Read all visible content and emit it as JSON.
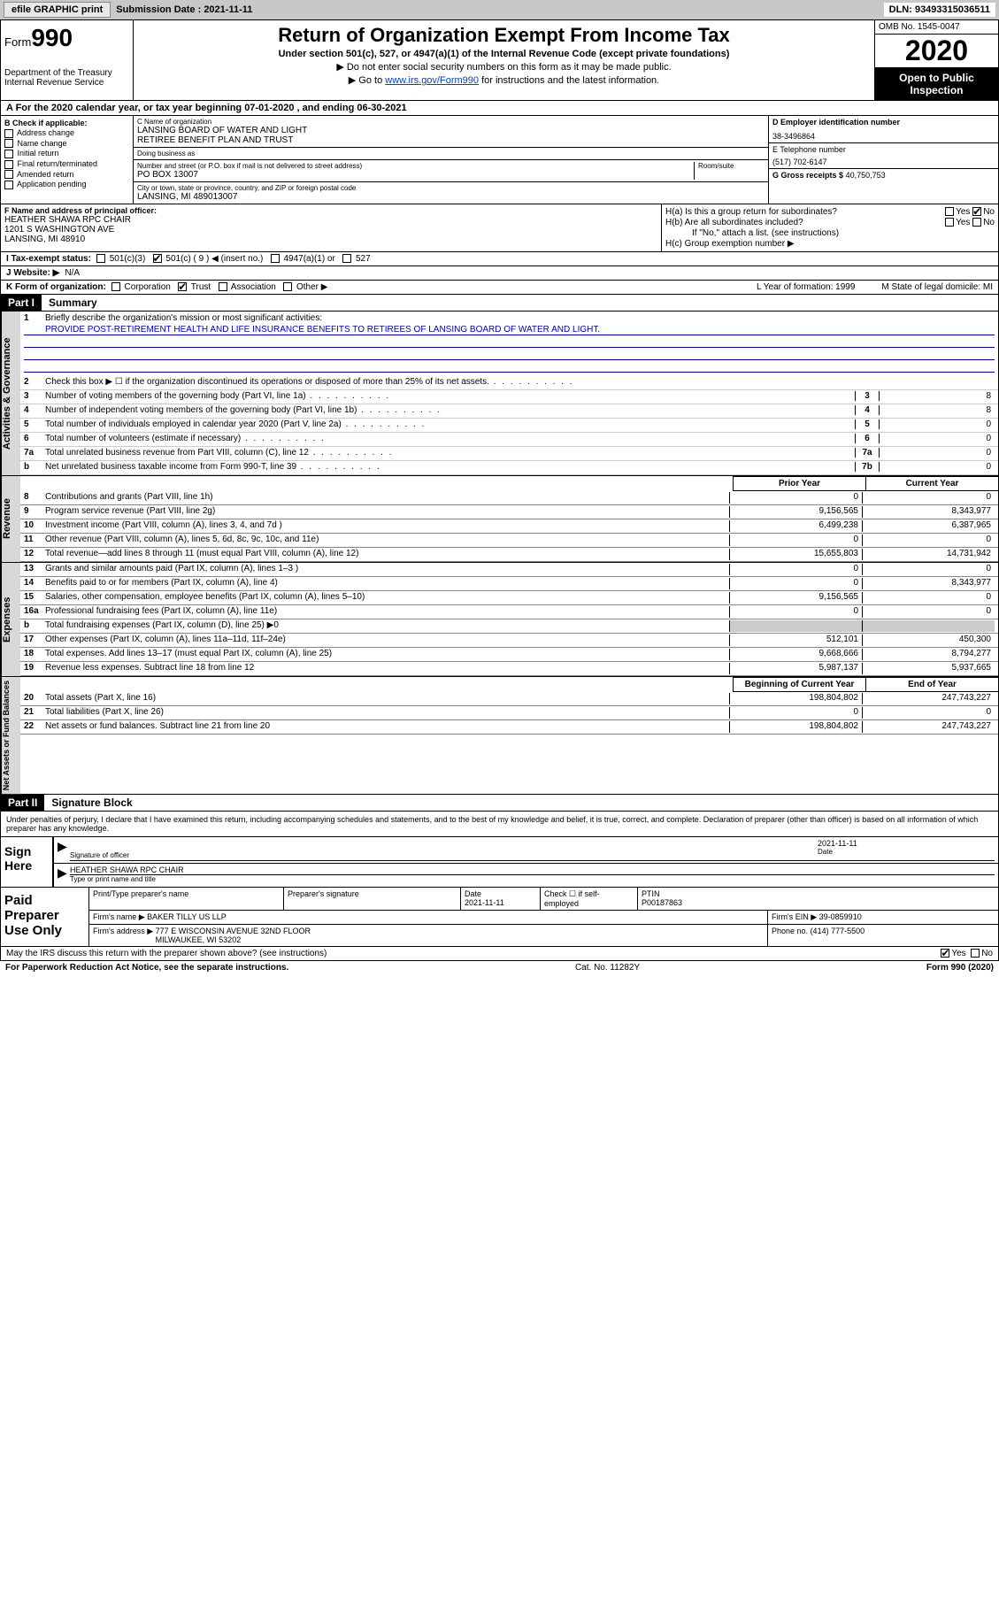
{
  "topbar": {
    "efile": "efile GRAPHIC print",
    "submission_label": "Submission Date : 2021-11-11",
    "dln": "DLN: 93493315036511"
  },
  "header": {
    "form_prefix": "Form",
    "form_no": "990",
    "dept": "Department of the Treasury\nInternal Revenue Service",
    "title": "Return of Organization Exempt From Income Tax",
    "subtitle": "Under section 501(c), 527, or 4947(a)(1) of the Internal Revenue Code (except private foundations)",
    "instr1": "▶ Do not enter social security numbers on this form as it may be made public.",
    "instr2_pre": "▶ Go to ",
    "instr2_link": "www.irs.gov/Form990",
    "instr2_post": " for instructions and the latest information.",
    "omb": "OMB No. 1545-0047",
    "year": "2020",
    "open": "Open to Public Inspection"
  },
  "period": "A For the 2020 calendar year, or tax year beginning 07-01-2020    , and ending 06-30-2021",
  "boxB": {
    "label": "B Check if applicable:",
    "items": [
      "Address change",
      "Name change",
      "Initial return",
      "Final return/terminated",
      "Amended return",
      "Application pending"
    ]
  },
  "boxC": {
    "name_label": "C Name of organization",
    "name": "LANSING BOARD OF WATER AND LIGHT\nRETIREE BENEFIT PLAN AND TRUST",
    "dba_label": "Doing business as",
    "dba": "",
    "addr_label": "Number and street (or P.O. box if mail is not delivered to street address)",
    "room_label": "Room/suite",
    "addr": "PO BOX 13007",
    "city_label": "City or town, state or province, country, and ZIP or foreign postal code",
    "city": "LANSING, MI  489013007"
  },
  "boxD": {
    "label": "D Employer identification number",
    "value": "38-3496864"
  },
  "boxE": {
    "label": "E Telephone number",
    "value": "(517) 702-6147"
  },
  "boxG": {
    "label": "G Gross receipts $",
    "value": "40,750,753"
  },
  "boxF": {
    "label": "F Name and address of principal officer:",
    "value": "HEATHER SHAWA RPC CHAIR\n1201 S WASHINGTON AVE\nLANSING, MI  48910"
  },
  "boxH": {
    "a": "H(a)  Is this a group return for subordinates?",
    "a_ans": "No",
    "b": "H(b)  Are all subordinates included?",
    "b_note": "If \"No,\" attach a list. (see instructions)",
    "c": "H(c)  Group exemption number ▶"
  },
  "taxrow": {
    "label": "I   Tax-exempt status:",
    "opts": [
      "501(c)(3)",
      "501(c) ( 9 ) ◀ (insert no.)",
      "4947(a)(1) or",
      "527"
    ],
    "checked_idx": 1
  },
  "website": {
    "label": "J   Website: ▶",
    "value": "N/A"
  },
  "krow": {
    "label": "K Form of organization:",
    "opts": [
      "Corporation",
      "Trust",
      "Association",
      "Other ▶"
    ],
    "checked_idx": 1,
    "l": "L Year of formation: 1999",
    "m": "M State of legal domicile: MI"
  },
  "part1": {
    "hdr": "Part I",
    "title": "Summary"
  },
  "briefly": {
    "num": "1",
    "label": "Briefly describe the organization's mission or most significant activities:",
    "text": "PROVIDE POST-RETIREMENT HEALTH AND LIFE INSURANCE BENEFITS TO RETIREES OF LANSING BOARD OF WATER AND LIGHT."
  },
  "gov_lines": [
    {
      "n": "2",
      "d": "Check this box ▶ ☐  if the organization discontinued its operations or disposed of more than 25% of its net assets.",
      "l": "",
      "v": ""
    },
    {
      "n": "3",
      "d": "Number of voting members of the governing body (Part VI, line 1a)",
      "l": "3",
      "v": "8"
    },
    {
      "n": "4",
      "d": "Number of independent voting members of the governing body (Part VI, line 1b)",
      "l": "4",
      "v": "8"
    },
    {
      "n": "5",
      "d": "Total number of individuals employed in calendar year 2020 (Part V, line 2a)",
      "l": "5",
      "v": "0"
    },
    {
      "n": "6",
      "d": "Total number of volunteers (estimate if necessary)",
      "l": "6",
      "v": "0"
    },
    {
      "n": "7a",
      "d": "Total unrelated business revenue from Part VIII, column (C), line 12",
      "l": "7a",
      "v": "0"
    },
    {
      "n": "b",
      "d": "Net unrelated business taxable income from Form 990-T, line 39",
      "l": "7b",
      "v": "0"
    }
  ],
  "col_hdrs": {
    "prior": "Prior Year",
    "current": "Current Year",
    "boy": "Beginning of Current Year",
    "eoy": "End of Year"
  },
  "rev_lines": [
    {
      "n": "8",
      "d": "Contributions and grants (Part VIII, line 1h)",
      "v1": "0",
      "v2": "0"
    },
    {
      "n": "9",
      "d": "Program service revenue (Part VIII, line 2g)",
      "v1": "9,156,565",
      "v2": "8,343,977"
    },
    {
      "n": "10",
      "d": "Investment income (Part VIII, column (A), lines 3, 4, and 7d )",
      "v1": "6,499,238",
      "v2": "6,387,965"
    },
    {
      "n": "11",
      "d": "Other revenue (Part VIII, column (A), lines 5, 6d, 8c, 9c, 10c, and 11e)",
      "v1": "0",
      "v2": "0"
    },
    {
      "n": "12",
      "d": "Total revenue—add lines 8 through 11 (must equal Part VIII, column (A), line 12)",
      "v1": "15,655,803",
      "v2": "14,731,942"
    }
  ],
  "exp_lines": [
    {
      "n": "13",
      "d": "Grants and similar amounts paid (Part IX, column (A), lines 1–3 )",
      "v1": "0",
      "v2": "0"
    },
    {
      "n": "14",
      "d": "Benefits paid to or for members (Part IX, column (A), line 4)",
      "v1": "0",
      "v2": "8,343,977"
    },
    {
      "n": "15",
      "d": "Salaries, other compensation, employee benefits (Part IX, column (A), lines 5–10)",
      "v1": "9,156,565",
      "v2": "0"
    },
    {
      "n": "16a",
      "d": "Professional fundraising fees (Part IX, column (A), line 11e)",
      "v1": "0",
      "v2": "0"
    },
    {
      "n": "b",
      "d": "Total fundraising expenses (Part IX, column (D), line 25) ▶0",
      "v1": "",
      "v2": "",
      "shade": true
    },
    {
      "n": "17",
      "d": "Other expenses (Part IX, column (A), lines 11a–11d, 11f–24e)",
      "v1": "512,101",
      "v2": "450,300"
    },
    {
      "n": "18",
      "d": "Total expenses. Add lines 13–17 (must equal Part IX, column (A), line 25)",
      "v1": "9,668,666",
      "v2": "8,794,277"
    },
    {
      "n": "19",
      "d": "Revenue less expenses. Subtract line 18 from line 12",
      "v1": "5,987,137",
      "v2": "5,937,665"
    }
  ],
  "net_lines": [
    {
      "n": "20",
      "d": "Total assets (Part X, line 16)",
      "v1": "198,804,802",
      "v2": "247,743,227"
    },
    {
      "n": "21",
      "d": "Total liabilities (Part X, line 26)",
      "v1": "0",
      "v2": "0"
    },
    {
      "n": "22",
      "d": "Net assets or fund balances. Subtract line 21 from line 20",
      "v1": "198,804,802",
      "v2": "247,743,227"
    }
  ],
  "vtabs": {
    "gov": "Activities & Governance",
    "rev": "Revenue",
    "exp": "Expenses",
    "net": "Net Assets or Fund Balances"
  },
  "part2": {
    "hdr": "Part II",
    "title": "Signature Block"
  },
  "perjury": "Under penalties of perjury, I declare that I have examined this return, including accompanying schedules and statements, and to the best of my knowledge and belief, it is true, correct, and complete. Declaration of preparer (other than officer) is based on all information of which preparer has any knowledge.",
  "sign": {
    "left": "Sign Here",
    "sig_label": "Signature of officer",
    "date": "2021-11-11",
    "date_label": "Date",
    "name": "HEATHER SHAWA  RPC CHAIR",
    "name_label": "Type or print name and title"
  },
  "prep": {
    "left": "Paid Preparer Use Only",
    "h1": "Print/Type preparer's name",
    "h2": "Preparer's signature",
    "h3": "Date",
    "h3v": "2021-11-11",
    "h4": "Check ☐ if self-employed",
    "h5": "PTIN",
    "h5v": "P00187863",
    "firm_label": "Firm's name    ▶",
    "firm": "BAKER TILLY US LLP",
    "ein_label": "Firm's EIN ▶",
    "ein": "39-0859910",
    "addr_label": "Firm's address ▶",
    "addr": "777 E WISCONSIN AVENUE 32ND FLOOR\nMILWAUKEE, WI  53202",
    "phone_label": "Phone no.",
    "phone": "(414) 777-5500"
  },
  "discuss": {
    "text": "May the IRS discuss this return with the preparer shown above? (see instructions)",
    "yes": "Yes",
    "no": "No",
    "checked": "yes"
  },
  "footer": {
    "left": "For Paperwork Reduction Act Notice, see the separate instructions.",
    "mid": "Cat. No. 11282Y",
    "right": "Form 990 (2020)"
  },
  "colors": {
    "topbar_bg": "#c8c8c8",
    "link": "#0645ad",
    "underline": "#1a3a8a"
  }
}
